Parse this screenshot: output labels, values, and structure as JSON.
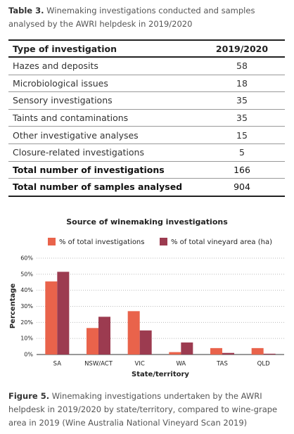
{
  "table": {
    "caption_label": "Table 3.",
    "caption": "Winemaking investigations conducted and samples analysed by the AWRI helpdesk in 2019/2020",
    "header": [
      "Type of investigation",
      "2019/2020"
    ],
    "rows": [
      [
        "Hazes and deposits",
        58
      ],
      [
        "Microbiological issues",
        18
      ],
      [
        "Sensory investigations",
        35
      ],
      [
        "Taints and contaminations",
        35
      ],
      [
        "Other investigative analyses",
        15
      ],
      [
        "Closure-related investigations",
        5
      ],
      [
        "Total number of investigations",
        166
      ],
      [
        "Total number of samples analysed",
        904
      ]
    ]
  },
  "chart_data": {
    "type": "bar",
    "title": "Source of winemaking investigations",
    "categories": [
      "SA",
      "NSW/ACT",
      "VIC",
      "WA",
      "TAS",
      "QLD"
    ],
    "series": [
      {
        "name": "% of total investigations",
        "color": "#e9634b",
        "values": [
          45.5,
          16.5,
          27,
          1.5,
          4,
          4
        ]
      },
      {
        "name": "% of total vineyard area (ha)",
        "color": "#9c3b50",
        "values": [
          51.5,
          23.5,
          15,
          7.5,
          1,
          0.5
        ]
      }
    ],
    "ylim": [
      0,
      60
    ],
    "yticks": [
      {
        "value": 0,
        "label": "0%"
      },
      {
        "value": 10,
        "label": "10%"
      },
      {
        "value": 20,
        "label": "20%"
      },
      {
        "value": 30,
        "label": "30%"
      },
      {
        "value": 40,
        "label": "40%"
      },
      {
        "value": 50,
        "label": "50%"
      },
      {
        "value": 60,
        "label": "60%"
      }
    ],
    "ylabel": "Percentage",
    "xlabel": "State/territory",
    "grid": true
  },
  "figure": {
    "caption_label": "Figure 5.",
    "caption": "Winemaking investigations undertaken by the AWRI helpdesk in 2019/2020 by state/territory, compared to wine-grape area in 2019 (Wine Australia National Vineyard Scan 2019)"
  }
}
